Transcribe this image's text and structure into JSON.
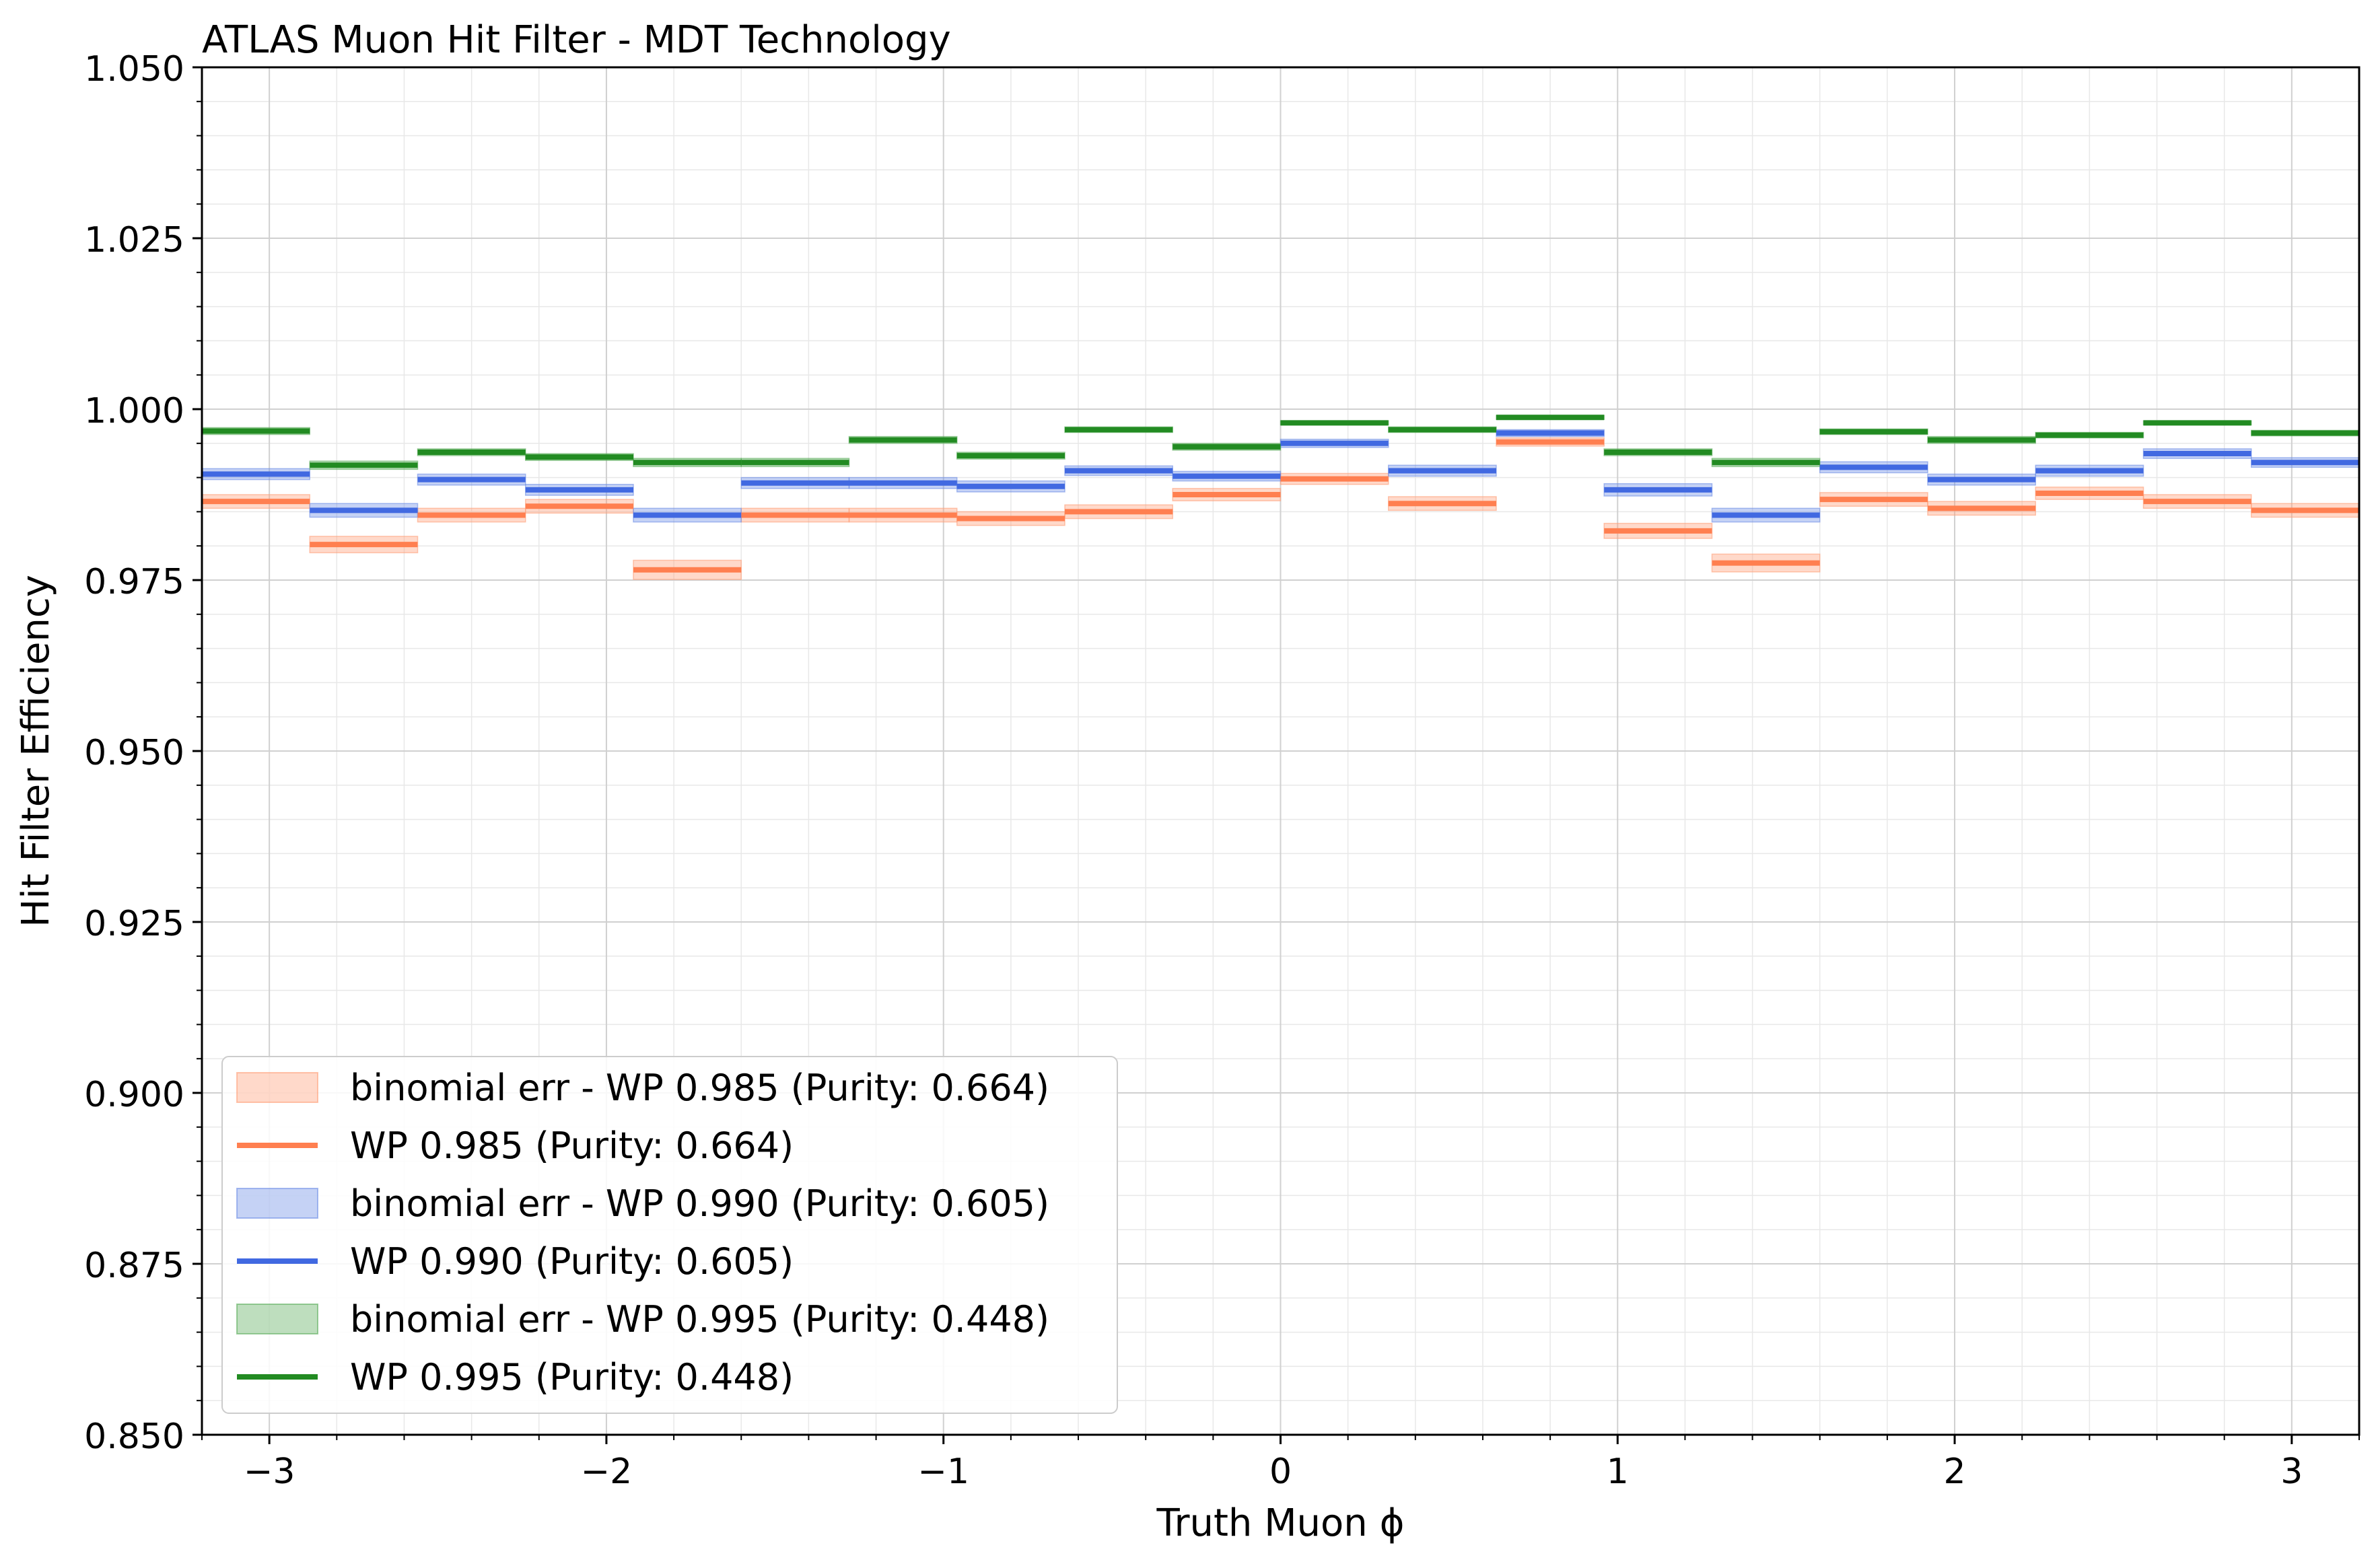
{
  "chart_data": {
    "type": "line",
    "title": "ATLAS Muon Hit Filter - MDT Technology",
    "xlabel": "Truth Muon ϕ",
    "ylabel": "Hit Filter Efficiency",
    "xlim": [
      -3.2,
      3.2
    ],
    "ylim": [
      0.85,
      1.05
    ],
    "xticks": [
      -3,
      -2,
      -1,
      0,
      1,
      2,
      3
    ],
    "xtick_labels": [
      "−3",
      "−2",
      "−1",
      "0",
      "1",
      "2",
      "3"
    ],
    "yticks": [
      0.85,
      0.875,
      0.9,
      0.925,
      0.95,
      0.975,
      1.0,
      1.025,
      1.05
    ],
    "ytick_labels": [
      "0.850",
      "0.875",
      "0.900",
      "0.925",
      "0.950",
      "0.975",
      "1.000",
      "1.025",
      "1.050"
    ],
    "grid": true,
    "legend_position": "lower-left",
    "bin_edges": [
      -3.2,
      -2.88,
      -2.56,
      -2.24,
      -1.92,
      -1.6,
      -1.28,
      -0.96,
      -0.64,
      -0.32,
      0.0,
      0.32,
      0.64,
      0.96,
      1.28,
      1.6,
      1.92,
      2.24,
      2.56,
      2.88,
      3.2
    ],
    "series": [
      {
        "name": "WP 0.985 (Purity: 0.664)",
        "band_label": "binomial err - WP 0.985 (Purity: 0.664)",
        "color": "#ff7f50",
        "band_color": "#ffa07a",
        "values": [
          0.9865,
          0.9802,
          0.9845,
          0.9858,
          0.9765,
          0.9845,
          0.9845,
          0.984,
          0.985,
          0.9875,
          0.9898,
          0.9862,
          0.9952,
          0.9822,
          0.9775,
          0.9868,
          0.9855,
          0.9877,
          0.9865,
          0.9852
        ],
        "err": [
          0.001,
          0.0012,
          0.001,
          0.001,
          0.0014,
          0.001,
          0.001,
          0.001,
          0.001,
          0.0009,
          0.0008,
          0.001,
          0.0006,
          0.0011,
          0.0013,
          0.001,
          0.001,
          0.0009,
          0.001,
          0.001
        ]
      },
      {
        "name": "WP 0.990 (Purity: 0.605)",
        "band_label": "binomial err - WP 0.990 (Purity: 0.605)",
        "color": "#4169e1",
        "band_color": "#6f8fe6",
        "values": [
          0.9905,
          0.9852,
          0.9897,
          0.9882,
          0.9845,
          0.9892,
          0.9892,
          0.9887,
          0.991,
          0.9902,
          0.995,
          0.991,
          0.9965,
          0.9882,
          0.9845,
          0.9915,
          0.9897,
          0.991,
          0.9935,
          0.9922
        ],
        "err": [
          0.0008,
          0.001,
          0.0008,
          0.0008,
          0.001,
          0.0008,
          0.0008,
          0.0008,
          0.0007,
          0.0007,
          0.0006,
          0.0008,
          0.0005,
          0.0009,
          0.001,
          0.0008,
          0.0008,
          0.0008,
          0.0007,
          0.0007
        ]
      },
      {
        "name": "WP 0.995 (Purity: 0.448)",
        "band_label": "binomial err - WP 0.995 (Purity: 0.448)",
        "color": "#228b22",
        "band_color": "#5cad5c",
        "values": [
          0.9968,
          0.9918,
          0.9937,
          0.993,
          0.9922,
          0.9922,
          0.9955,
          0.9932,
          0.997,
          0.9945,
          0.998,
          0.997,
          0.9988,
          0.9937,
          0.9922,
          0.9967,
          0.9955,
          0.9962,
          0.998,
          0.9965
        ],
        "err": [
          0.0005,
          0.0006,
          0.0005,
          0.0005,
          0.0006,
          0.0006,
          0.0005,
          0.0005,
          0.0004,
          0.0005,
          0.0003,
          0.0004,
          0.0003,
          0.0005,
          0.0006,
          0.0004,
          0.0005,
          0.0004,
          0.0003,
          0.0004
        ]
      }
    ]
  }
}
